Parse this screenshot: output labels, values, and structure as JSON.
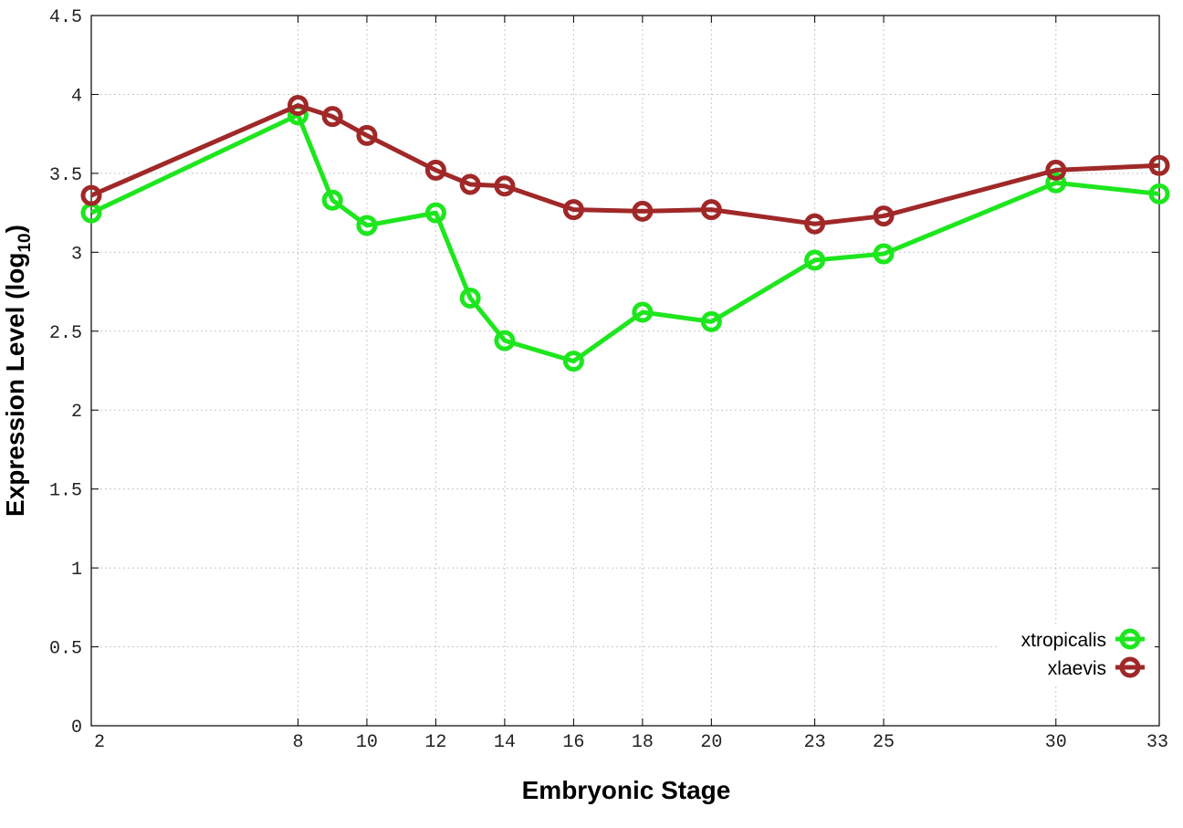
{
  "chart_data": {
    "type": "line",
    "xlabel": "Embryonic Stage",
    "ylabel_main": "Expression Level (log",
    "ylabel_sub": "10",
    "ylabel_close": ")",
    "ylim": [
      0,
      4.5
    ],
    "y_ticks": [
      0,
      0.5,
      1,
      1.5,
      2,
      2.5,
      3,
      3.5,
      4,
      4.5
    ],
    "y_tick_labels": [
      "0",
      "0.5",
      "1",
      "1.5",
      "2",
      "2.5",
      "3",
      "3.5",
      "4",
      "4.5"
    ],
    "x_categories": [
      "2",
      "8",
      "9",
      "10",
      "12",
      "13",
      "14",
      "16",
      "18",
      "20",
      "23",
      "25",
      "30",
      "33"
    ],
    "x_tick_labels": [
      "2",
      "8",
      "10",
      "12",
      "14",
      "16",
      "18",
      "20",
      "23",
      "25",
      "30",
      "33"
    ],
    "grid": true,
    "legend_position": "bottom-right",
    "series": [
      {
        "name": "xtropicalis",
        "color": "#1ee61e",
        "values": [
          3.25,
          3.87,
          3.33,
          3.17,
          3.25,
          2.71,
          2.44,
          2.31,
          2.62,
          2.56,
          2.95,
          2.99,
          3.44,
          3.37
        ]
      },
      {
        "name": "xlaevis",
        "color": "#a02828",
        "values": [
          3.36,
          3.93,
          3.86,
          3.74,
          3.52,
          3.43,
          3.42,
          3.27,
          3.26,
          3.27,
          3.18,
          3.23,
          3.52,
          3.55
        ]
      }
    ]
  }
}
